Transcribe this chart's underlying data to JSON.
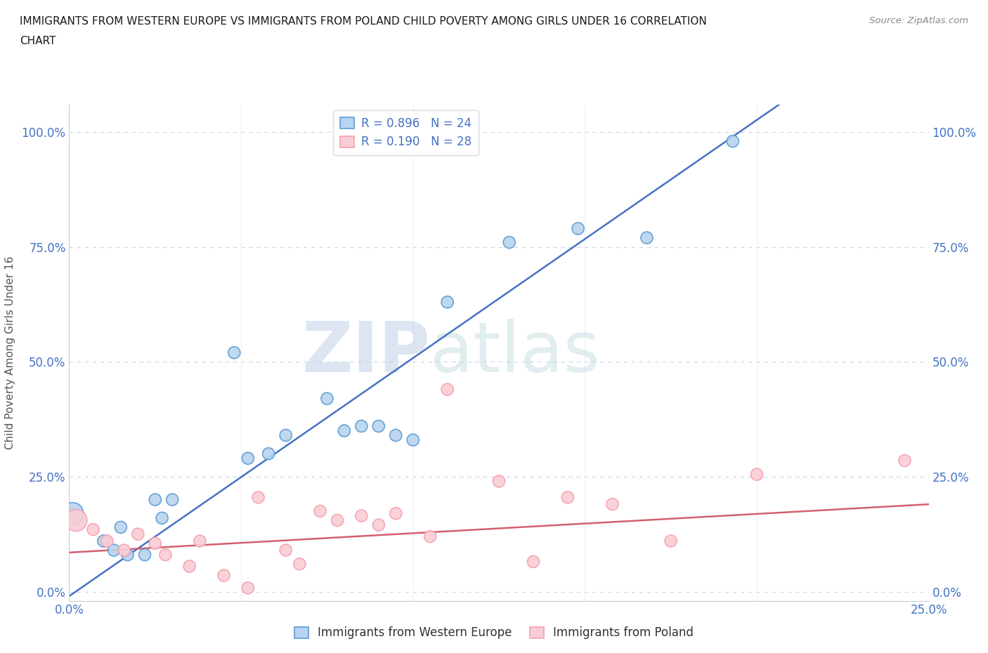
{
  "title_line1": "IMMIGRANTS FROM WESTERN EUROPE VS IMMIGRANTS FROM POLAND CHILD POVERTY AMONG GIRLS UNDER 16 CORRELATION",
  "title_line2": "CHART",
  "source": "Source: ZipAtlas.com",
  "ylabel": "Child Poverty Among Girls Under 16",
  "xlim": [
    0.0,
    0.25
  ],
  "ylim": [
    -0.02,
    1.06
  ],
  "ytick_labels": [
    "0.0%",
    "25.0%",
    "50.0%",
    "75.0%",
    "100.0%"
  ],
  "ytick_values": [
    0.0,
    0.25,
    0.5,
    0.75,
    1.0
  ],
  "xtick_labels": [
    "0.0%",
    "25.0%"
  ],
  "xtick_values": [
    0.0,
    0.25
  ],
  "watermark_ZIP": "ZIP",
  "watermark_atlas": "atlas",
  "blue_face": "#b8d4ee",
  "blue_edge": "#5b9bd5",
  "pink_face": "#f9cdd4",
  "pink_edge": "#f4a0b0",
  "line_blue": "#4472c4",
  "line_pink": "#d45f6e",
  "R_blue": "0.896",
  "N_blue": "24",
  "R_pink": "0.190",
  "N_pink": "28",
  "blue_x": [
    0.001,
    0.01,
    0.013,
    0.015,
    0.017,
    0.022,
    0.025,
    0.027,
    0.03,
    0.048,
    0.052,
    0.058,
    0.063,
    0.075,
    0.08,
    0.085,
    0.09,
    0.095,
    0.1,
    0.11,
    0.128,
    0.148,
    0.168,
    0.193
  ],
  "blue_y": [
    0.17,
    0.11,
    0.09,
    0.14,
    0.08,
    0.08,
    0.2,
    0.16,
    0.2,
    0.52,
    0.29,
    0.3,
    0.34,
    0.42,
    0.35,
    0.36,
    0.36,
    0.34,
    0.33,
    0.63,
    0.76,
    0.79,
    0.77,
    0.98
  ],
  "blue_sizes": [
    500,
    150,
    150,
    150,
    150,
    150,
    150,
    150,
    150,
    150,
    150,
    150,
    150,
    150,
    150,
    150,
    150,
    150,
    150,
    150,
    150,
    150,
    150,
    150
  ],
  "pink_x": [
    0.002,
    0.007,
    0.011,
    0.016,
    0.02,
    0.025,
    0.028,
    0.035,
    0.038,
    0.045,
    0.052,
    0.055,
    0.063,
    0.067,
    0.073,
    0.078,
    0.085,
    0.09,
    0.095,
    0.105,
    0.11,
    0.125,
    0.135,
    0.145,
    0.158,
    0.175,
    0.2,
    0.243
  ],
  "pink_y": [
    0.155,
    0.135,
    0.11,
    0.09,
    0.125,
    0.105,
    0.08,
    0.055,
    0.11,
    0.035,
    0.008,
    0.205,
    0.09,
    0.06,
    0.175,
    0.155,
    0.165,
    0.145,
    0.17,
    0.12,
    0.44,
    0.24,
    0.065,
    0.205,
    0.19,
    0.11,
    0.255,
    0.285
  ],
  "pink_sizes": [
    500,
    150,
    150,
    150,
    150,
    150,
    150,
    150,
    150,
    150,
    150,
    150,
    150,
    150,
    150,
    150,
    150,
    150,
    150,
    150,
    150,
    150,
    150,
    150,
    150,
    150,
    150,
    150
  ],
  "grid_color": "#c8d4e8",
  "background_color": "#ffffff",
  "title_color": "#1a1a1a",
  "tick_label_color": "#4472c4",
  "ylabel_color": "#555555"
}
